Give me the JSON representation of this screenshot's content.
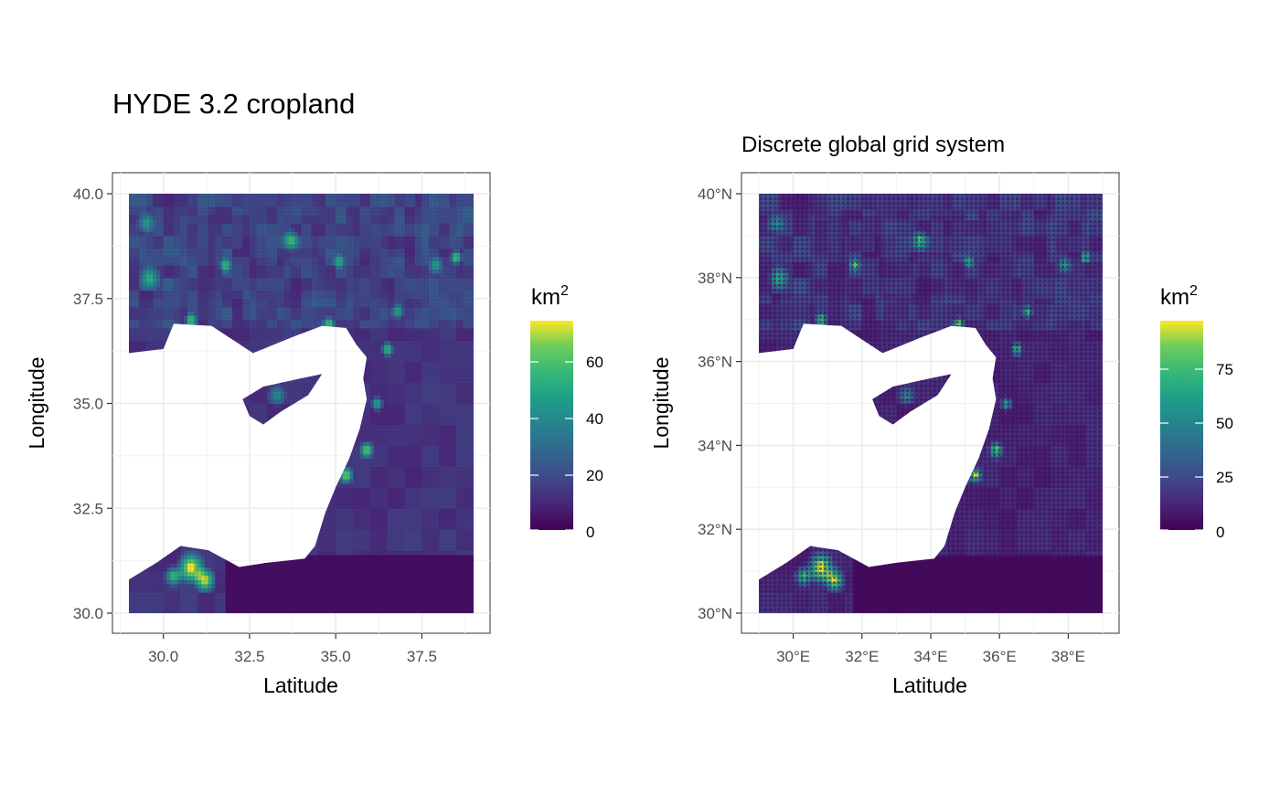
{
  "panels": [
    {
      "title": "HYDE 3.2 cropland",
      "xlabel": "Latitude",
      "ylabel": "Longitude",
      "x_ticks": [
        "30.0",
        "32.5",
        "35.0",
        "37.5"
      ],
      "y_ticks": [
        "40.0",
        "37.5",
        "35.0",
        "32.5",
        "30.0"
      ],
      "legend": {
        "title": "km",
        "superscript": "2",
        "labels": [
          "60",
          "40",
          "20",
          "0"
        ]
      }
    },
    {
      "title": "Discrete global grid system",
      "xlabel": "Latitude",
      "ylabel": "Longitude",
      "x_ticks": [
        "30°E",
        "32°E",
        "34°E",
        "36°E",
        "38°E"
      ],
      "y_ticks": [
        "40°N",
        "38°N",
        "36°N",
        "34°N",
        "32°N",
        "30°N"
      ],
      "legend": {
        "title": "km",
        "superscript": "2",
        "labels": [
          "75",
          "50",
          "25",
          "0"
        ]
      }
    }
  ],
  "chart_data": [
    {
      "type": "heatmap",
      "title": "HYDE 3.2 cropland",
      "xlabel": "Latitude",
      "ylabel": "Longitude",
      "xlim": [
        29,
        39
      ],
      "ylim": [
        30,
        40
      ],
      "x_ticks": [
        30.0,
        32.5,
        35.0,
        37.5
      ],
      "y_ticks": [
        30.0,
        32.5,
        35.0,
        37.5,
        40.0
      ],
      "color_scale": "viridis",
      "value_range": [
        0,
        75
      ],
      "legend_ticks": [
        0,
        20,
        40,
        60
      ],
      "colors": {
        "low": "#440154",
        "mid": "#21908C",
        "high": "#FDE725"
      }
    },
    {
      "type": "heatmap",
      "title": "Discrete global grid system",
      "xlabel": "Latitude",
      "ylabel": "Longitude",
      "xlim": [
        29,
        39
      ],
      "ylim": [
        30,
        40
      ],
      "x_ticks": [
        30,
        32,
        34,
        36,
        38
      ],
      "y_ticks": [
        30,
        32,
        34,
        36,
        38,
        40
      ],
      "color_scale": "viridis",
      "value_range": [
        0,
        98
      ],
      "legend_ticks": [
        0,
        25,
        50,
        75
      ],
      "colors": {
        "low": "#440154",
        "mid": "#21908C",
        "high": "#FDE725"
      }
    }
  ]
}
